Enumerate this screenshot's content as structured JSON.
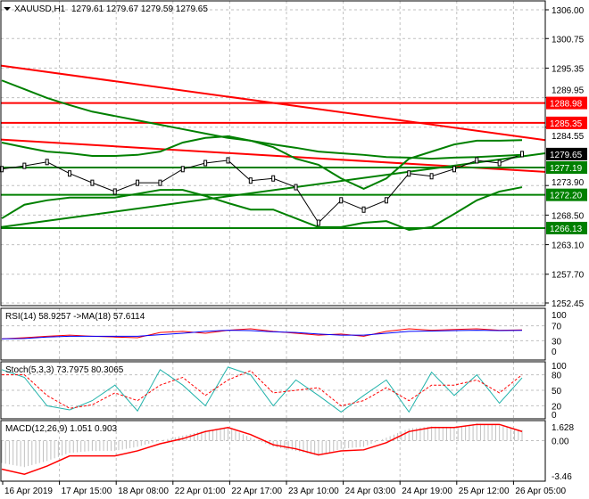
{
  "header": {
    "symbol": "XAUUSD,H1",
    "ohlc": "1279.61 1279.67 1279.59 1279.65"
  },
  "price_axis": [
    "1306.00",
    "1300.75",
    "1295.35",
    "1289.95",
    "1284.55",
    "1273.90",
    "1268.50",
    "1263.10",
    "1257.70",
    "1252.45"
  ],
  "time_axis": [
    "16 Apr 2019",
    "17 Apr 15:00",
    "18 Apr 08:00",
    "22 Apr 01:00",
    "22 Apr 17:00",
    "23 Apr 10:00",
    "24 Apr 03:00",
    "24 Apr 19:00",
    "25 Apr 12:00",
    "26 Apr 05:00"
  ],
  "levels": [
    {
      "price": 1288.98,
      "label": "1288.98",
      "color": "#ff0000"
    },
    {
      "price": 1285.35,
      "label": "1285.35",
      "color": "#ff0000"
    },
    {
      "price": 1277.19,
      "label": "1277.19",
      "color": "#008000"
    },
    {
      "price": 1272.2,
      "label": "1272.20",
      "color": "#008000"
    },
    {
      "price": 1266.13,
      "label": "1266.13",
      "color": "#008000"
    }
  ],
  "current_price": {
    "price": 1279.65,
    "label": "1279.65",
    "color": "#000000"
  },
  "chart_data": [
    {
      "type": "line",
      "title": "XAUUSD,H1",
      "ylim": [
        1252.45,
        1306.0
      ],
      "series": [
        {
          "role": "price",
          "color": "#000000",
          "values": [
            1276.9,
            1277.5,
            1278.2,
            1276.1,
            1274.4,
            1272.8,
            1274.4,
            1274.4,
            1276.9,
            1278.0,
            1278.5,
            1274.8,
            1275.2,
            1273.6,
            1267.1,
            1271.2,
            1269.5,
            1271.2,
            1276.1,
            1275.6,
            1276.9,
            1278.5,
            1278.0,
            1279.65
          ]
        },
        {
          "role": "bollinger-upper",
          "color": "#008000",
          "values": [
            1281.75,
            1280.9,
            1280.1,
            1279.8,
            1279.3,
            1279.3,
            1279.5,
            1280.1,
            1281.75,
            1282.6,
            1282.9,
            1282.1,
            1280.9,
            1278.8,
            1277.7,
            1275.2,
            1273.3,
            1275.2,
            1278.8,
            1280.1,
            1281.4,
            1282.1,
            1282.1,
            1282.2
          ]
        },
        {
          "role": "bollinger-lower",
          "color": "#008000",
          "values": [
            1267.9,
            1270.4,
            1271.2,
            1271.7,
            1271.7,
            1271.7,
            1272.4,
            1273.1,
            1273.1,
            1272.0,
            1270.7,
            1269.5,
            1269.5,
            1267.9,
            1266.3,
            1266.3,
            1267.1,
            1267.4,
            1265.8,
            1266.3,
            1268.7,
            1271.2,
            1272.8,
            1273.6
          ]
        },
        {
          "role": "moving-average",
          "color": "#008000",
          "values": [
            1293.1,
            1291.5,
            1289.9,
            1288.6,
            1287.4,
            1286.6,
            1285.8,
            1285.0,
            1284.2,
            1283.4,
            1282.6,
            1282.1,
            1281.4,
            1280.8,
            1280.1,
            1279.8,
            1279.5,
            1279.1,
            1279.0,
            1278.8,
            1279.0,
            1279.1,
            1279.3,
            1279.5
          ]
        }
      ],
      "trendlines": [
        {
          "color": "#ff0000",
          "from": 1295.8,
          "to": 1282.2
        },
        {
          "color": "#ff0000",
          "from": 1282.3,
          "to": 1276.4
        },
        {
          "color": "#008000",
          "from": 1266.3,
          "to": 1279.8
        }
      ]
    },
    {
      "type": "line",
      "title": "RSI(14) 58.9257  ->MA(18) 57.6114",
      "ylim": [
        0,
        100
      ],
      "ticks": [
        "100",
        "70",
        "30",
        "0"
      ],
      "series": [
        {
          "role": "rsi",
          "color": "#ff0000",
          "values": [
            35,
            38,
            42,
            45,
            42,
            40,
            38,
            52,
            55,
            50,
            58,
            62,
            55,
            50,
            45,
            48,
            42,
            55,
            62,
            58,
            60,
            62,
            58,
            59
          ]
        },
        {
          "role": "ma",
          "color": "#0000ff",
          "values": [
            35,
            36,
            40,
            42,
            42,
            42,
            42,
            46,
            50,
            55,
            58,
            57,
            54,
            52,
            48,
            45,
            45,
            50,
            55,
            56,
            57,
            58,
            57,
            57.6
          ]
        }
      ]
    },
    {
      "type": "line",
      "title": "Stoch(5,3,3) 73.7975 80.3065",
      "ylim": [
        0,
        100
      ],
      "ticks": [
        "100",
        "80",
        "50",
        "20",
        "0"
      ],
      "series": [
        {
          "role": "main",
          "color": "#20b2aa",
          "values": [
            90,
            75,
            20,
            12,
            30,
            60,
            10,
            90,
            60,
            20,
            95,
            80,
            20,
            70,
            40,
            8,
            40,
            70,
            8,
            85,
            40,
            80,
            25,
            74
          ]
        },
        {
          "role": "signal",
          "color": "#ff0000",
          "values": [
            80,
            80,
            40,
            15,
            22,
            45,
            30,
            60,
            75,
            40,
            70,
            88,
            45,
            50,
            55,
            20,
            30,
            55,
            30,
            60,
            60,
            70,
            45,
            80
          ]
        }
      ]
    },
    {
      "type": "bar",
      "title": "MACD(12,26,9) 1.051 0.903",
      "ylim": [
        -3.46,
        1.628
      ],
      "ticks": [
        "1.628",
        "0.00",
        "-3.46"
      ],
      "series": [
        {
          "role": "macd-histogram",
          "color": "#c0c0c0",
          "values": [
            -2.2,
            -2.6,
            -2.0,
            -1.2,
            -1.0,
            -1.0,
            -0.6,
            0.0,
            0.5,
            1.0,
            1.3,
            0.3,
            -0.6,
            -1.0,
            -1.5,
            -0.8,
            -0.6,
            0.3,
            1.2,
            1.4,
            1.3,
            1.7,
            1.5,
            1.05
          ]
        },
        {
          "role": "signal",
          "color": "#ff0000",
          "values": [
            -2.8,
            -3.3,
            -2.5,
            -1.5,
            -1.5,
            -1.5,
            -1.0,
            -0.3,
            0.2,
            0.9,
            1.3,
            0.6,
            -0.4,
            -0.8,
            -1.4,
            -1.0,
            -0.9,
            -0.2,
            0.9,
            1.3,
            1.3,
            1.6,
            1.6,
            0.903
          ]
        }
      ]
    }
  ]
}
